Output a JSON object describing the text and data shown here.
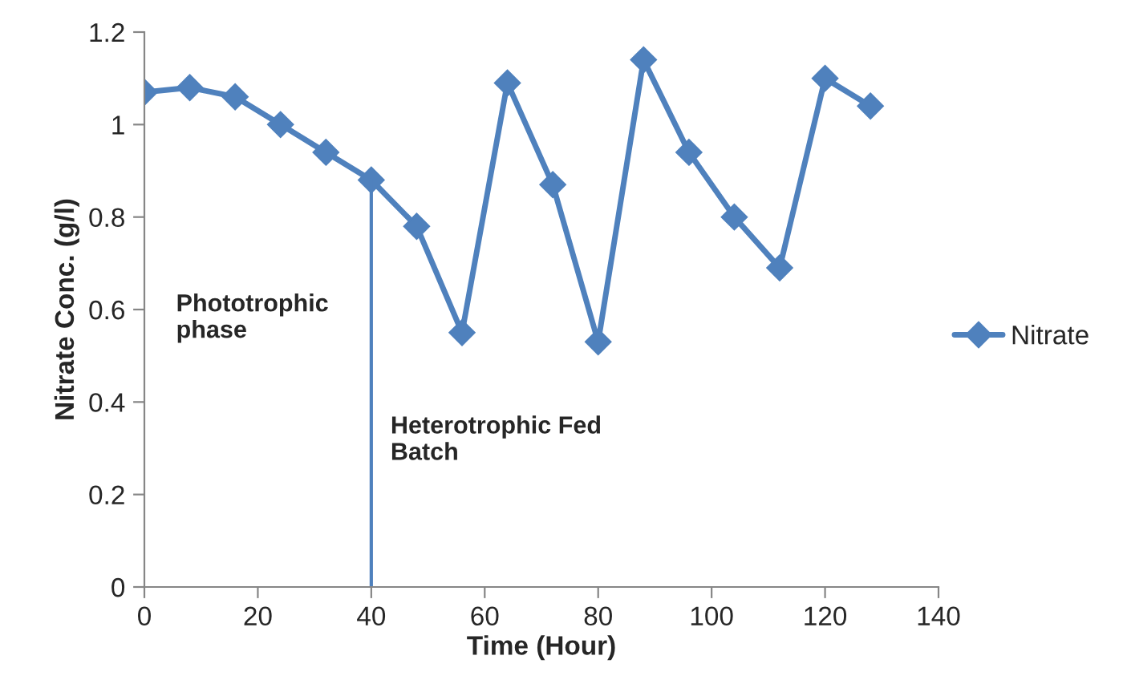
{
  "chart_data": {
    "type": "line",
    "xlabel": "Time (Hour)",
    "ylabel": "Nitrate Conc. (g/l)",
    "x": [
      0,
      8,
      16,
      24,
      32,
      40,
      48,
      56,
      64,
      72,
      80,
      88,
      96,
      104,
      112,
      120,
      128
    ],
    "series": [
      {
        "name": "Nitrate",
        "color": "#4f81bd",
        "values": [
          1.07,
          1.08,
          1.06,
          1.0,
          0.94,
          0.88,
          0.78,
          0.55,
          1.09,
          0.87,
          0.53,
          1.14,
          0.94,
          0.8,
          0.69,
          1.1,
          1.04
        ]
      }
    ],
    "xlim": [
      0,
      140
    ],
    "xticks": [
      0,
      20,
      40,
      60,
      80,
      100,
      120,
      140
    ],
    "ylim": [
      0,
      1.2
    ],
    "yticks": [
      0,
      0.2,
      0.4,
      0.6,
      0.8,
      1,
      1.2
    ],
    "ref_lines": [
      {
        "axis": "x",
        "value": 40,
        "color": "#4f81bd"
      }
    ],
    "annotations": [
      "Phototrophic\nphase",
      "Heterotrophic Fed\nBatch"
    ],
    "marker": "diamond",
    "line_style": "solid",
    "grid": false,
    "legend": "right"
  }
}
